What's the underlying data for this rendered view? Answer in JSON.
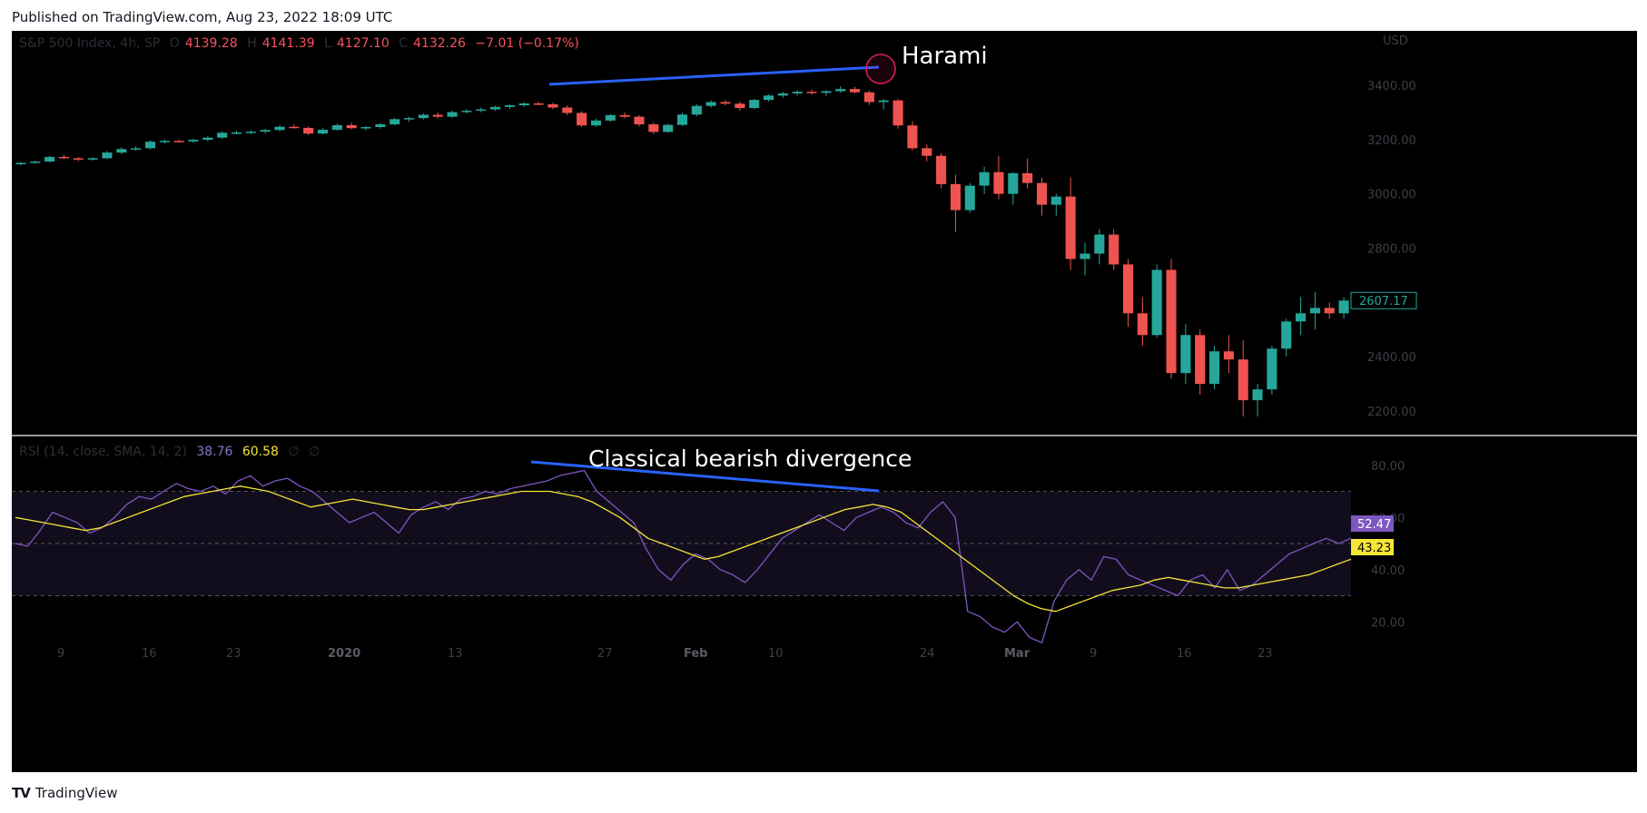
{
  "header": {
    "published": "Published on TradingView.com, Aug 23, 2022 18:09 UTC"
  },
  "footer": {
    "brand": "TradingView",
    "logo_glyph": "TV"
  },
  "legend_price": {
    "symbol": "S&P 500 Index, 4h, SP",
    "o_label": "O",
    "open": "4139.28",
    "h_label": "H",
    "high": "4141.39",
    "l_label": "L",
    "low": "4127.10",
    "c_label": "C",
    "close": "4132.26",
    "change": "−7.01 (−0.17%)"
  },
  "legend_rsi": {
    "label": "RSI (14, close, SMA, 14, 2)",
    "rsi": "38.76",
    "sma": "60.58",
    "empty_symbol": "∅"
  },
  "badges": {
    "price": "2607.17",
    "rsi": "52.47",
    "rsi_ma": "43.23"
  },
  "annotations": {
    "harami": "Harami",
    "divergence": "Classical bearish divergence"
  },
  "colors": {
    "up": "#26a69a",
    "down": "#ef5350",
    "rsi_line": "#7e57c2",
    "rsi_ma": "#f5e536",
    "trendline": "#2962ff",
    "circle": "#d81b60",
    "band": "#120d1c"
  },
  "chart_data": [
    {
      "type": "candlestick",
      "title": "S&P 500 Index, 4h, SP",
      "currency": "USD",
      "y_ticks": [
        2200,
        2400,
        2600,
        2800,
        3000,
        3200,
        3400
      ],
      "y_tick_labels": [
        "2200.00",
        "2400.00",
        "2600.00",
        "2800.00",
        "3000.00",
        "3200.00",
        "3400.00"
      ],
      "ylim": [
        2130,
        3500
      ],
      "x_labels": [
        "9",
        "16",
        "23",
        "2020",
        "13",
        "27",
        "Feb",
        "10",
        "24",
        "Mar",
        "9",
        "16",
        "23"
      ],
      "ohlc": [
        [
          3110,
          3118,
          3105,
          3114
        ],
        [
          3114,
          3122,
          3110,
          3119
        ],
        [
          3119,
          3140,
          3116,
          3136
        ],
        [
          3136,
          3144,
          3128,
          3131
        ],
        [
          3131,
          3136,
          3120,
          3126
        ],
        [
          3126,
          3135,
          3122,
          3131
        ],
        [
          3131,
          3158,
          3128,
          3152
        ],
        [
          3152,
          3172,
          3146,
          3165
        ],
        [
          3165,
          3175,
          3158,
          3168
        ],
        [
          3168,
          3197,
          3164,
          3192
        ],
        [
          3192,
          3200,
          3185,
          3195
        ],
        [
          3195,
          3200,
          3188,
          3193
        ],
        [
          3193,
          3204,
          3188,
          3199
        ],
        [
          3199,
          3212,
          3194,
          3207
        ],
        [
          3207,
          3230,
          3202,
          3225
        ],
        [
          3225,
          3232,
          3218,
          3226
        ],
        [
          3226,
          3234,
          3220,
          3229
        ],
        [
          3229,
          3240,
          3222,
          3235
        ],
        [
          3235,
          3252,
          3230,
          3247
        ],
        [
          3247,
          3256,
          3240,
          3243
        ],
        [
          3243,
          3248,
          3216,
          3222
        ],
        [
          3222,
          3242,
          3218,
          3236
        ],
        [
          3236,
          3258,
          3232,
          3253
        ],
        [
          3253,
          3262,
          3238,
          3242
        ],
        [
          3242,
          3250,
          3234,
          3246
        ],
        [
          3246,
          3262,
          3240,
          3256
        ],
        [
          3256,
          3280,
          3252,
          3275
        ],
        [
          3275,
          3284,
          3265,
          3279
        ],
        [
          3279,
          3296,
          3274,
          3291
        ],
        [
          3291,
          3300,
          3278,
          3284
        ],
        [
          3284,
          3306,
          3280,
          3301
        ],
        [
          3301,
          3312,
          3296,
          3306
        ],
        [
          3306,
          3318,
          3300,
          3311
        ],
        [
          3311,
          3325,
          3306,
          3320
        ],
        [
          3320,
          3330,
          3312,
          3326
        ],
        [
          3326,
          3338,
          3320,
          3333
        ],
        [
          3333,
          3340,
          3326,
          3330
        ],
        [
          3330,
          3335,
          3312,
          3318
        ],
        [
          3318,
          3326,
          3290,
          3298
        ],
        [
          3298,
          3304,
          3246,
          3252
        ],
        [
          3252,
          3276,
          3246,
          3270
        ],
        [
          3270,
          3294,
          3266,
          3290
        ],
        [
          3290,
          3300,
          3278,
          3284
        ],
        [
          3284,
          3290,
          3248,
          3256
        ],
        [
          3256,
          3262,
          3220,
          3228
        ],
        [
          3228,
          3258,
          3224,
          3254
        ],
        [
          3254,
          3298,
          3250,
          3292
        ],
        [
          3292,
          3330,
          3286,
          3324
        ],
        [
          3324,
          3344,
          3318,
          3338
        ],
        [
          3338,
          3346,
          3326,
          3332
        ],
        [
          3332,
          3340,
          3306,
          3316
        ],
        [
          3316,
          3350,
          3312,
          3346
        ],
        [
          3346,
          3366,
          3340,
          3362
        ],
        [
          3362,
          3376,
          3354,
          3370
        ],
        [
          3370,
          3382,
          3362,
          3376
        ],
        [
          3376,
          3384,
          3366,
          3372
        ],
        [
          3372,
          3382,
          3360,
          3378
        ],
        [
          3378,
          3396,
          3372,
          3386
        ],
        [
          3386,
          3394,
          3370,
          3374
        ],
        [
          3374,
          3380,
          3328,
          3338
        ],
        [
          3338,
          3350,
          3310,
          3344
        ],
        [
          3344,
          3350,
          3240,
          3252
        ],
        [
          3252,
          3268,
          3160,
          3168
        ],
        [
          3168,
          3182,
          3120,
          3140
        ],
        [
          3140,
          3150,
          3020,
          3036
        ],
        [
          3036,
          3070,
          2860,
          2940
        ],
        [
          2940,
          3040,
          2930,
          3030
        ],
        [
          3030,
          3100,
          3000,
          3080
        ],
        [
          3080,
          3140,
          2980,
          3000
        ],
        [
          3000,
          3080,
          2960,
          3076
        ],
        [
          3076,
          3130,
          3020,
          3040
        ],
        [
          3040,
          3060,
          2920,
          2960
        ],
        [
          2960,
          3000,
          2920,
          2990
        ],
        [
          2990,
          3060,
          2720,
          2760
        ],
        [
          2760,
          2820,
          2700,
          2780
        ],
        [
          2780,
          2870,
          2740,
          2850
        ],
        [
          2850,
          2870,
          2720,
          2740
        ],
        [
          2740,
          2760,
          2510,
          2560
        ],
        [
          2560,
          2620,
          2440,
          2480
        ],
        [
          2480,
          2740,
          2470,
          2720
        ],
        [
          2720,
          2760,
          2320,
          2340
        ],
        [
          2340,
          2520,
          2300,
          2480
        ],
        [
          2480,
          2500,
          2260,
          2300
        ],
        [
          2300,
          2440,
          2280,
          2420
        ],
        [
          2420,
          2480,
          2340,
          2390
        ],
        [
          2390,
          2460,
          2180,
          2240
        ],
        [
          2240,
          2300,
          2180,
          2280
        ],
        [
          2280,
          2440,
          2260,
          2430
        ],
        [
          2430,
          2540,
          2400,
          2530
        ],
        [
          2530,
          2620,
          2480,
          2560
        ],
        [
          2560,
          2640,
          2500,
          2580
        ],
        [
          2580,
          2600,
          2540,
          2560
        ],
        [
          2560,
          2620,
          2540,
          2607
        ]
      ]
    },
    {
      "type": "line",
      "title": "RSI (14, close, SMA, 14, 2)",
      "y_ticks": [
        20,
        40,
        60,
        80
      ],
      "y_tick_labels": [
        "20.00",
        "40.00",
        "60.00",
        "80.00"
      ],
      "ylim": [
        10,
        90
      ],
      "bands": [
        30,
        50,
        70
      ],
      "series": [
        {
          "name": "RSI",
          "values": [
            50,
            49,
            55,
            62,
            60,
            58,
            54,
            56,
            60,
            65,
            68,
            67,
            70,
            73,
            71,
            70,
            72,
            69,
            74,
            76,
            72,
            74,
            75,
            72,
            70,
            66,
            62,
            58,
            60,
            62,
            58,
            54,
            61,
            64,
            66,
            63,
            67,
            68,
            70,
            69,
            71,
            72,
            73,
            74,
            76,
            77,
            78,
            70,
            66,
            62,
            58,
            48,
            40,
            36,
            42,
            46,
            44,
            40,
            38,
            35,
            40,
            46,
            52,
            55,
            58,
            61,
            58,
            55,
            60,
            62,
            64,
            62,
            58,
            56,
            62,
            66,
            60,
            24,
            22,
            18,
            16,
            20,
            14,
            12,
            28,
            36,
            40,
            36,
            45,
            44,
            38,
            36,
            34,
            32,
            30,
            36,
            38,
            33,
            40,
            32,
            34,
            38,
            42,
            46,
            48,
            50,
            52,
            50,
            52
          ]
        },
        {
          "name": "SMA",
          "values": [
            60,
            59,
            58,
            57,
            56,
            55,
            56,
            58,
            60,
            62,
            64,
            66,
            68,
            69,
            70,
            71,
            72,
            71,
            70,
            68,
            66,
            64,
            65,
            66,
            67,
            66,
            65,
            64,
            63,
            63,
            64,
            65,
            66,
            67,
            68,
            69,
            70,
            70,
            70,
            69,
            68,
            66,
            63,
            60,
            56,
            52,
            50,
            48,
            46,
            44,
            45,
            47,
            49,
            51,
            53,
            55,
            57,
            59,
            61,
            63,
            64,
            65,
            64,
            62,
            58,
            54,
            50,
            46,
            42,
            38,
            34,
            30,
            27,
            25,
            24,
            26,
            28,
            30,
            32,
            33,
            34,
            36,
            37,
            36,
            35,
            34,
            33,
            33,
            34,
            35,
            36,
            37,
            38,
            40,
            42,
            44
          ]
        }
      ]
    }
  ]
}
